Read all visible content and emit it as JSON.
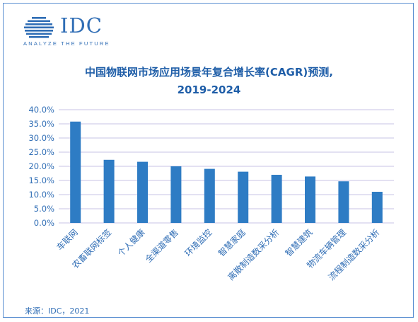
{
  "logo": {
    "name": "IDC",
    "tagline": "ANALYZE THE FUTURE",
    "color": "#2f6db5"
  },
  "title_line1": "中国物联网市场应用场景年复合增长率(CAGR)预测,",
  "title_line2": "2019-2024",
  "source": "来源：IDC，2021",
  "colors": {
    "bar": "#2e7cc4",
    "grid": "#c7c3e6",
    "axis_text": "#2f6db5",
    "frame": "#5b8fd1"
  },
  "chart_data": {
    "type": "bar",
    "categories": [
      "车联网",
      "农畜联网标签",
      "个人健康",
      "全渠道零售",
      "环境监控",
      "智慧家庭",
      "离散制造数采分析",
      "智慧建筑",
      "物流车辆管理",
      "流程制造数采分析"
    ],
    "values": [
      35.8,
      22.3,
      21.6,
      20.0,
      19.1,
      18.1,
      17.0,
      16.4,
      14.7,
      11.0
    ],
    "ylim": [
      0,
      40
    ],
    "yticks": [
      "0.0%",
      "5.0%",
      "10.0%",
      "15.0%",
      "20.0%",
      "25.0%",
      "30.0%",
      "35.0%",
      "40.0%"
    ],
    "grid": true,
    "legend": "none"
  }
}
